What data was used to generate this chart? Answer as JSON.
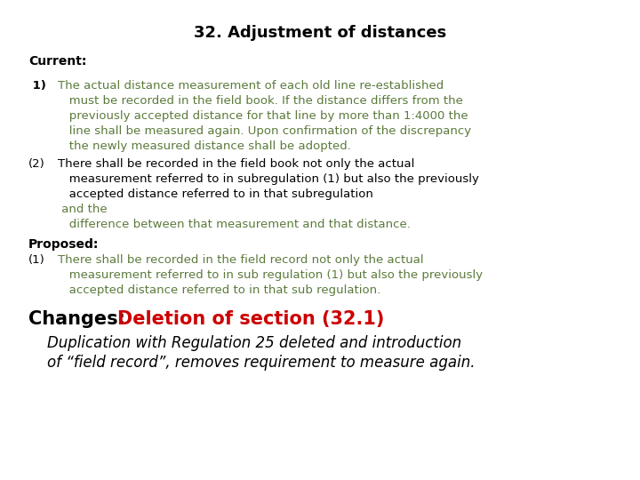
{
  "title": "32. Adjustment of distances",
  "bg_color": "#ffffff",
  "title_color": "#000000",
  "title_fontsize": 13,
  "current_label": "Current:",
  "proposed_label": "Proposed:",
  "label_fontsize": 10,
  "s1_prefix": " 1)",
  "s1_lines": [
    "The actual distance measurement of each old line re-established",
    "   must be recorded in the field book. If the distance differs from the",
    "   previously accepted distance for that line by more than 1:4000 the",
    "   line shall be measured again. Upon confirmation of the discrepancy",
    "   the newly measured distance shall be adopted."
  ],
  "s1_color": "#5b7a3b",
  "s1_bg": "#e8f5d8",
  "s1_fontsize": 9.5,
  "s2_prefix": "(2)",
  "s2_lines_black": [
    "There shall be recorded in the field book not only the actual",
    "   measurement referred to in subregulation (1) but also the previously",
    "   accepted distance referred to in that subregulation"
  ],
  "s2_line_green1": " and the",
  "s2_line_green2": "   difference between that measurement and that distance.",
  "s2_color_black": "#000000",
  "s2_color_green": "#5b7a3b",
  "s2_bg": "#e8f5d8",
  "s2_fontsize": 9.5,
  "s3_prefix": "(1)",
  "s3_lines": [
    "There shall be recorded in the field record not only the actual",
    "   measurement referred to in sub regulation (1) but also the previously",
    "   accepted distance referred to in that sub regulation."
  ],
  "s3_color": "#5b7a3b",
  "s3_bg": "#ffff99",
  "s3_fontsize": 9.5,
  "changes_black": "Changes: ",
  "changes_red": "Deletion of section (32.1)",
  "changes_black_color": "#000000",
  "changes_red_color": "#cc0000",
  "changes_fontsize": 15,
  "italic_lines": [
    "    Duplication with Regulation 25 deleted and introduction",
    "    of “field record”, removes requirement to measure again."
  ],
  "italic_fontsize": 12,
  "italic_color": "#000000"
}
